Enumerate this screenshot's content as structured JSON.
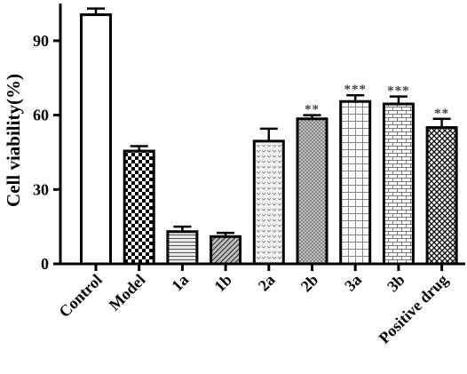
{
  "chart_data": {
    "type": "bar",
    "title": "",
    "xlabel": "",
    "ylabel": "Cell viability(%)",
    "ylim": [
      0,
      105
    ],
    "yticks": [
      0,
      30,
      60,
      90
    ],
    "grid": false,
    "categories": [
      "Control",
      "Model",
      "1a",
      "1b",
      "2a",
      "2b",
      "3a",
      "3b",
      "Positive drug"
    ],
    "values": [
      100.5,
      45.5,
      13.0,
      11.0,
      49.5,
      58.5,
      65.5,
      64.5,
      55.0
    ],
    "errors": [
      2.5,
      2.0,
      2.0,
      1.5,
      5.0,
      1.5,
      2.5,
      3.0,
      3.5
    ],
    "significance": [
      "",
      "",
      "",
      "",
      "",
      "**",
      "***",
      "***",
      "**"
    ],
    "patterns": [
      "white",
      "checker",
      "hlines",
      "diag-dense",
      "dots",
      "crosshatch",
      "grid",
      "brick",
      "diamond"
    ]
  }
}
